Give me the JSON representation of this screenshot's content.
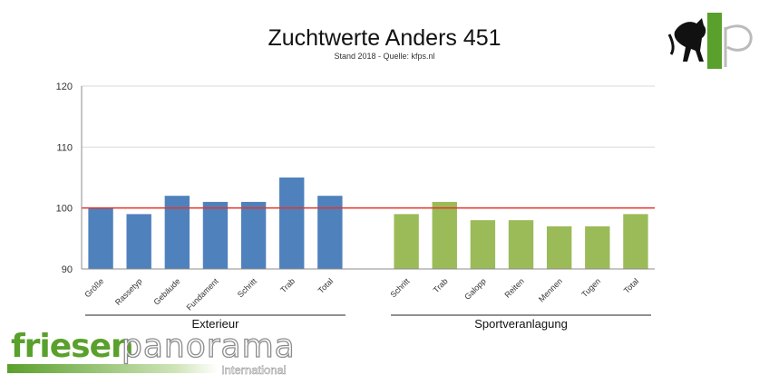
{
  "header": {
    "title": "Zuchtwerte Anders 451",
    "subtitle": "Stand 2018 - Quelle: kfps.nl"
  },
  "logos": {
    "kfp": "kfp",
    "brand_word1": "friesen",
    "brand_word2": "panorama",
    "brand_sub": "International",
    "brand_green": "#5aa02c"
  },
  "chart_data": {
    "type": "bar",
    "ylim": [
      90,
      120
    ],
    "yticks": [
      90,
      100,
      110,
      120
    ],
    "grid": true,
    "reference_line": {
      "value": 100,
      "color": "#e2342a"
    },
    "groups": [
      {
        "name": "Exterieur",
        "color": "#4f81bd",
        "categories": [
          "Größe",
          "Rassetyp",
          "Gebäude",
          "Fundament",
          "Schritt",
          "Trab",
          "Total"
        ],
        "values": [
          100,
          99,
          102,
          101,
          101,
          105,
          102
        ]
      },
      {
        "name": "Sportveranlagung",
        "color": "#9bbb59",
        "categories": [
          "Schritt",
          "Trab",
          "Galopp",
          "Reiten",
          "Mennen",
          "Tugen",
          "Total"
        ],
        "values": [
          99,
          101,
          98,
          98,
          97,
          97,
          99
        ]
      }
    ]
  }
}
